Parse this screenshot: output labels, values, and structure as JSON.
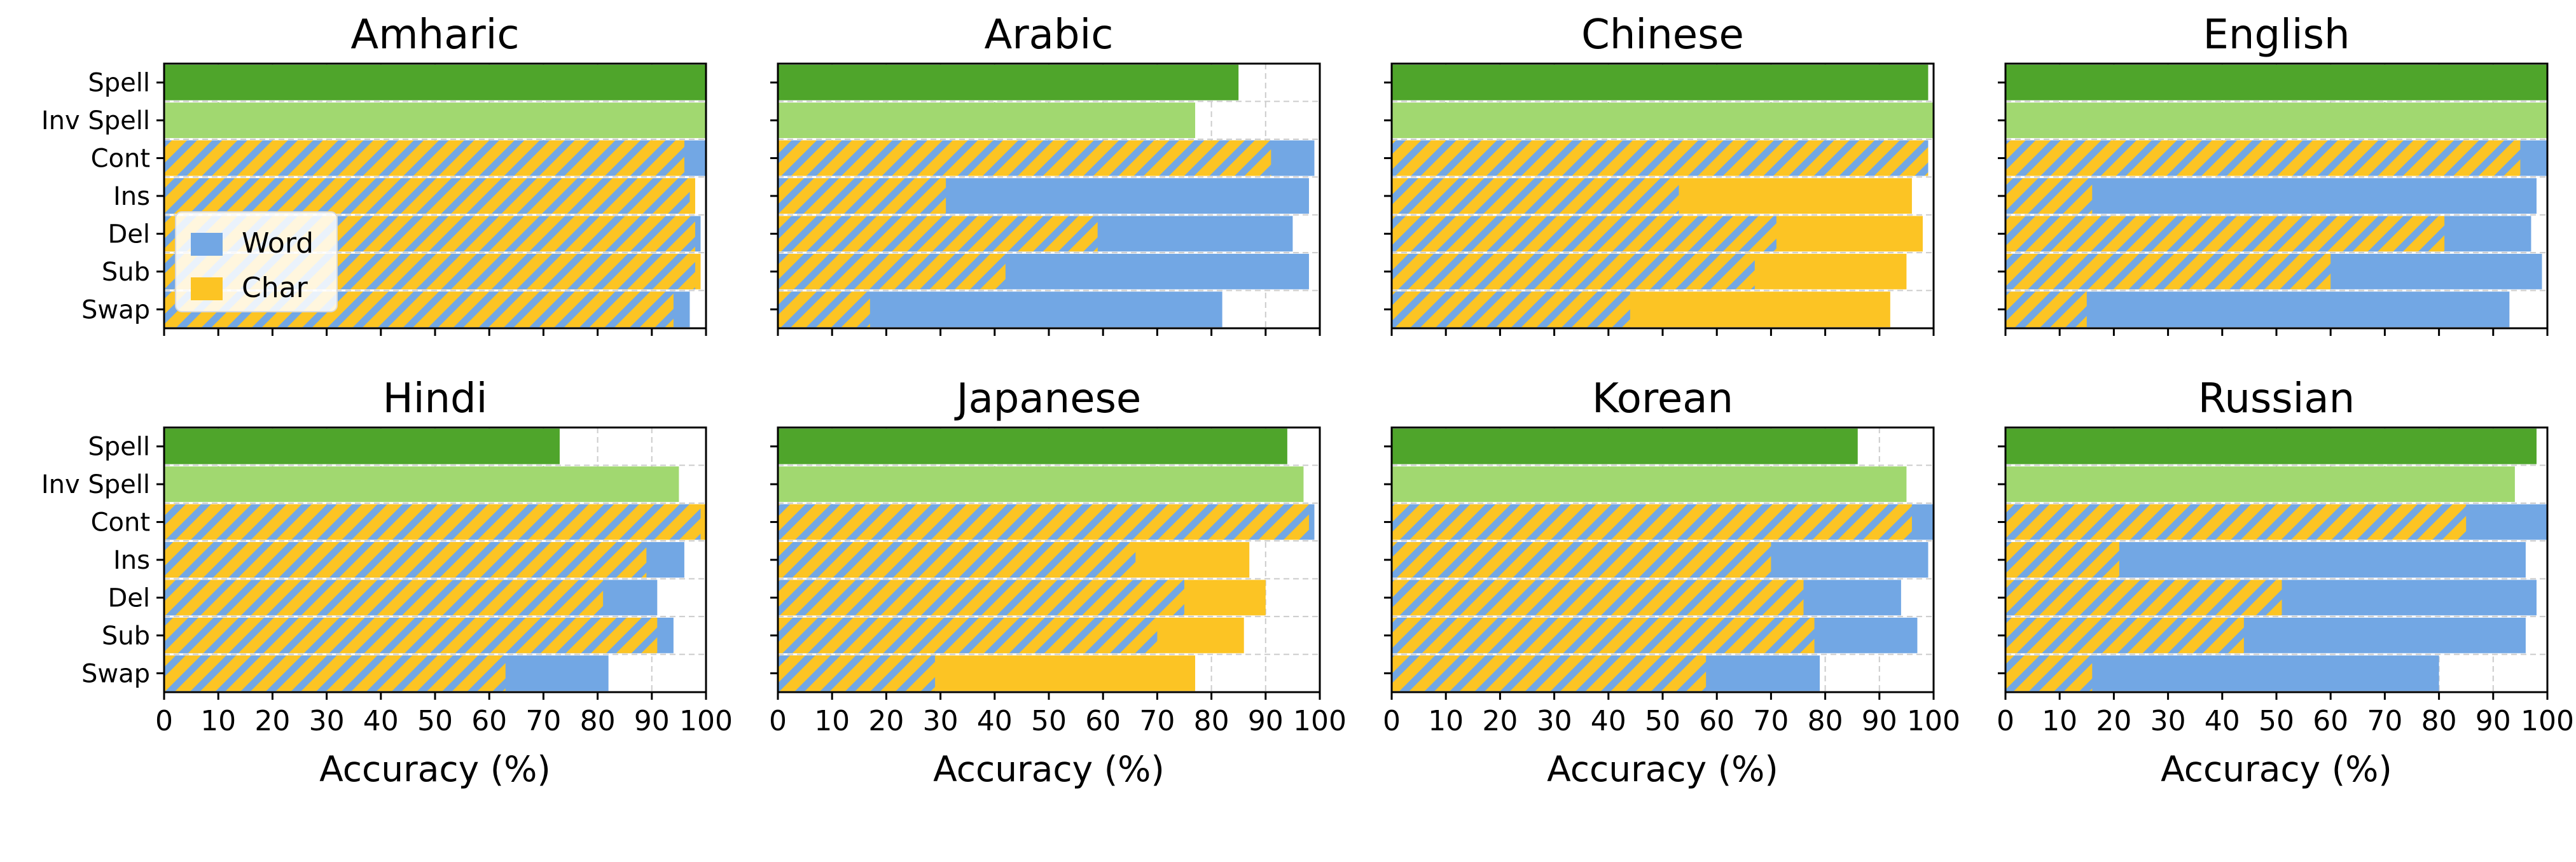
{
  "figure": {
    "legend": {
      "placement": "center-left (first panel)",
      "entries": [
        "Word",
        "Char"
      ]
    },
    "colors": {
      "spell": "#4fa52b",
      "inv_spell": "#a1d870",
      "word": "#72a7e4",
      "char": "#fcc424",
      "grid": "#cccccc"
    }
  },
  "chart_data": [
    {
      "type": "bar",
      "orientation": "horizontal",
      "title": "Amharic",
      "categories": [
        "Spell",
        "Inv Spell",
        "Cont",
        "Ins",
        "Del",
        "Sub",
        "Swap"
      ],
      "xlabel": "",
      "xlim": [
        0,
        100
      ],
      "xticks": [
        "0",
        "10",
        "20",
        "30",
        "40",
        "50",
        "60",
        "70",
        "80",
        "90",
        "100"
      ],
      "grid": true,
      "series": [
        {
          "name": "Spell",
          "values": {
            "Spell": 100
          }
        },
        {
          "name": "Inv Spell",
          "values": {
            "Inv Spell": 100
          }
        },
        {
          "name": "Word",
          "values": {
            "Cont": 100,
            "Ins": 97,
            "Del": 99,
            "Sub": 98,
            "Swap": 97
          }
        },
        {
          "name": "Char",
          "values": {
            "Cont": 96,
            "Ins": 98,
            "Del": 98,
            "Sub": 99,
            "Swap": 94
          }
        }
      ]
    },
    {
      "type": "bar",
      "orientation": "horizontal",
      "title": "Arabic",
      "categories": [
        "Spell",
        "Inv Spell",
        "Cont",
        "Ins",
        "Del",
        "Sub",
        "Swap"
      ],
      "xlabel": "",
      "xlim": [
        0,
        100
      ],
      "xticks": [
        "0",
        "10",
        "20",
        "30",
        "40",
        "50",
        "60",
        "70",
        "80",
        "90",
        "100"
      ],
      "grid": true,
      "series": [
        {
          "name": "Spell",
          "values": {
            "Spell": 85
          }
        },
        {
          "name": "Inv Spell",
          "values": {
            "Inv Spell": 77
          }
        },
        {
          "name": "Word",
          "values": {
            "Cont": 99,
            "Ins": 98,
            "Del": 95,
            "Sub": 98,
            "Swap": 82
          }
        },
        {
          "name": "Char",
          "values": {
            "Cont": 91,
            "Ins": 31,
            "Del": 59,
            "Sub": 42,
            "Swap": 17
          }
        }
      ]
    },
    {
      "type": "bar",
      "orientation": "horizontal",
      "title": "Chinese",
      "categories": [
        "Spell",
        "Inv Spell",
        "Cont",
        "Ins",
        "Del",
        "Sub",
        "Swap"
      ],
      "xlabel": "",
      "xlim": [
        0,
        100
      ],
      "xticks": [
        "0",
        "10",
        "20",
        "30",
        "40",
        "50",
        "60",
        "70",
        "80",
        "90",
        "100"
      ],
      "grid": true,
      "series": [
        {
          "name": "Spell",
          "values": {
            "Spell": 99
          }
        },
        {
          "name": "Inv Spell",
          "values": {
            "Inv Spell": 100
          }
        },
        {
          "name": "Word",
          "values": {
            "Cont": 99,
            "Ins": 53,
            "Del": 71,
            "Sub": 67,
            "Swap": 44
          }
        },
        {
          "name": "Char",
          "values": {
            "Cont": 99,
            "Ins": 96,
            "Del": 98,
            "Sub": 95,
            "Swap": 92
          }
        }
      ]
    },
    {
      "type": "bar",
      "orientation": "horizontal",
      "title": "English",
      "categories": [
        "Spell",
        "Inv Spell",
        "Cont",
        "Ins",
        "Del",
        "Sub",
        "Swap"
      ],
      "xlabel": "",
      "xlim": [
        0,
        100
      ],
      "xticks": [
        "0",
        "10",
        "20",
        "30",
        "40",
        "50",
        "60",
        "70",
        "80",
        "90",
        "100"
      ],
      "grid": true,
      "series": [
        {
          "name": "Spell",
          "values": {
            "Spell": 100
          }
        },
        {
          "name": "Inv Spell",
          "values": {
            "Inv Spell": 100
          }
        },
        {
          "name": "Word",
          "values": {
            "Cont": 100,
            "Ins": 98,
            "Del": 97,
            "Sub": 99,
            "Swap": 93
          }
        },
        {
          "name": "Char",
          "values": {
            "Cont": 95,
            "Ins": 16,
            "Del": 81,
            "Sub": 60,
            "Swap": 15
          }
        }
      ]
    },
    {
      "type": "bar",
      "orientation": "horizontal",
      "title": "Hindi",
      "categories": [
        "Spell",
        "Inv Spell",
        "Cont",
        "Ins",
        "Del",
        "Sub",
        "Swap"
      ],
      "xlabel": "Accuracy (%)",
      "xlim": [
        0,
        100
      ],
      "xticks": [
        "0",
        "10",
        "20",
        "30",
        "40",
        "50",
        "60",
        "70",
        "80",
        "90",
        "100"
      ],
      "grid": true,
      "series": [
        {
          "name": "Spell",
          "values": {
            "Spell": 73
          }
        },
        {
          "name": "Inv Spell",
          "values": {
            "Inv Spell": 95
          }
        },
        {
          "name": "Word",
          "values": {
            "Cont": 99,
            "Ins": 96,
            "Del": 91,
            "Sub": 94,
            "Swap": 82
          }
        },
        {
          "name": "Char",
          "values": {
            "Cont": 100,
            "Ins": 89,
            "Del": 81,
            "Sub": 91,
            "Swap": 63
          }
        }
      ]
    },
    {
      "type": "bar",
      "orientation": "horizontal",
      "title": "Japanese",
      "categories": [
        "Spell",
        "Inv Spell",
        "Cont",
        "Ins",
        "Del",
        "Sub",
        "Swap"
      ],
      "xlabel": "Accuracy (%)",
      "xlim": [
        0,
        100
      ],
      "xticks": [
        "0",
        "10",
        "20",
        "30",
        "40",
        "50",
        "60",
        "70",
        "80",
        "90",
        "100"
      ],
      "grid": true,
      "series": [
        {
          "name": "Spell",
          "values": {
            "Spell": 94
          }
        },
        {
          "name": "Inv Spell",
          "values": {
            "Inv Spell": 97
          }
        },
        {
          "name": "Word",
          "values": {
            "Cont": 99,
            "Ins": 66,
            "Del": 75,
            "Sub": 70,
            "Swap": 29
          }
        },
        {
          "name": "Char",
          "values": {
            "Cont": 98,
            "Ins": 87,
            "Del": 90,
            "Sub": 86,
            "Swap": 77
          }
        }
      ]
    },
    {
      "type": "bar",
      "orientation": "horizontal",
      "title": "Korean",
      "categories": [
        "Spell",
        "Inv Spell",
        "Cont",
        "Ins",
        "Del",
        "Sub",
        "Swap"
      ],
      "xlabel": "Accuracy (%)",
      "xlim": [
        0,
        100
      ],
      "xticks": [
        "0",
        "10",
        "20",
        "30",
        "40",
        "50",
        "60",
        "70",
        "80",
        "90",
        "100"
      ],
      "grid": true,
      "series": [
        {
          "name": "Spell",
          "values": {
            "Spell": 86
          }
        },
        {
          "name": "Inv Spell",
          "values": {
            "Inv Spell": 95
          }
        },
        {
          "name": "Word",
          "values": {
            "Cont": 100,
            "Ins": 99,
            "Del": 94,
            "Sub": 97,
            "Swap": 79
          }
        },
        {
          "name": "Char",
          "values": {
            "Cont": 96,
            "Ins": 70,
            "Del": 76,
            "Sub": 78,
            "Swap": 58
          }
        }
      ]
    },
    {
      "type": "bar",
      "orientation": "horizontal",
      "title": "Russian",
      "categories": [
        "Spell",
        "Inv Spell",
        "Cont",
        "Ins",
        "Del",
        "Sub",
        "Swap"
      ],
      "xlabel": "Accuracy (%)",
      "xlim": [
        0,
        100
      ],
      "xticks": [
        "0",
        "10",
        "20",
        "30",
        "40",
        "50",
        "60",
        "70",
        "80",
        "90",
        "100"
      ],
      "grid": true,
      "series": [
        {
          "name": "Spell",
          "values": {
            "Spell": 98
          }
        },
        {
          "name": "Inv Spell",
          "values": {
            "Inv Spell": 94
          }
        },
        {
          "name": "Word",
          "values": {
            "Cont": 100,
            "Ins": 96,
            "Del": 98,
            "Sub": 96,
            "Swap": 80
          }
        },
        {
          "name": "Char",
          "values": {
            "Cont": 85,
            "Ins": 21,
            "Del": 51,
            "Sub": 44,
            "Swap": 16
          }
        }
      ]
    }
  ]
}
